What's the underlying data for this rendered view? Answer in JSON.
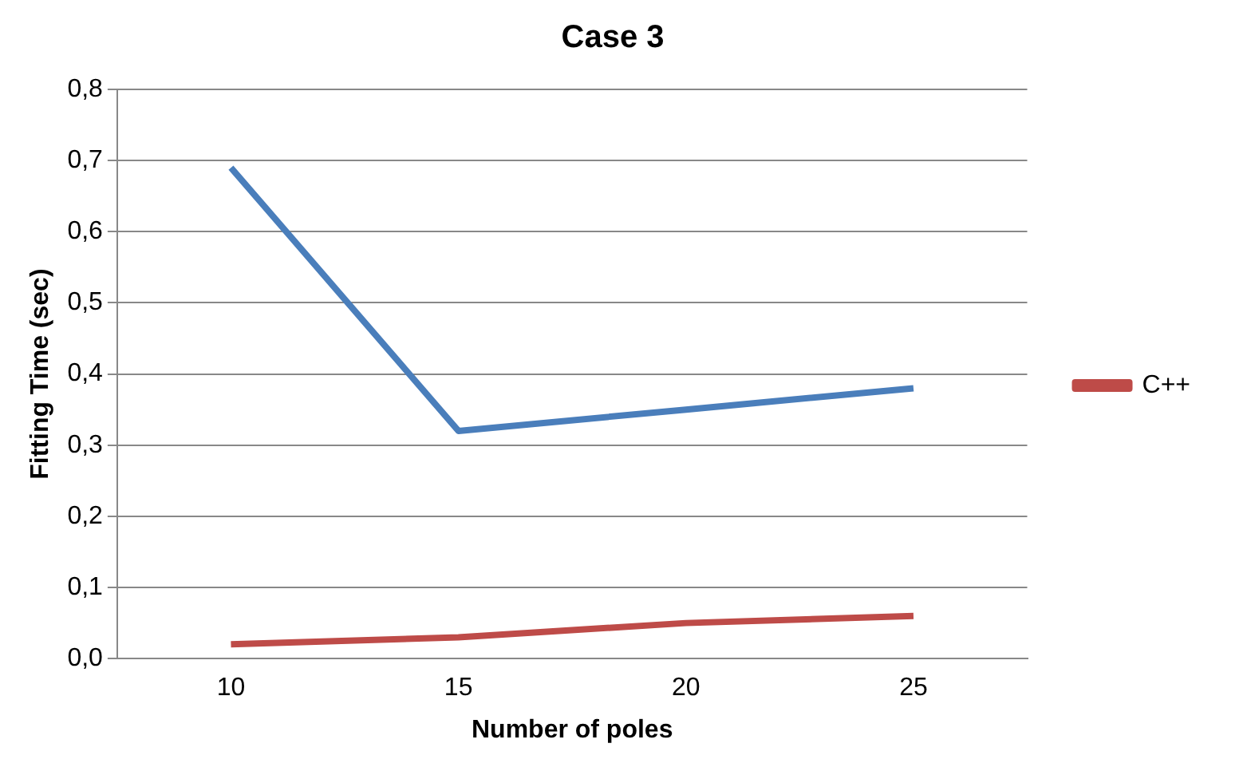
{
  "chart_data": {
    "type": "line",
    "title": "Case 3",
    "xlabel": "Number of poles",
    "ylabel": "Fitting Time (sec)",
    "categories": [
      "10",
      "15",
      "20",
      "25"
    ],
    "series": [
      {
        "color": "#4a7ebb",
        "values": [
          0.69,
          0.32,
          0.35,
          0.38
        ]
      },
      {
        "name": "C++",
        "color": "#be4b48",
        "values": [
          0.02,
          0.03,
          0.05,
          0.06
        ]
      }
    ],
    "ylim": [
      0,
      0.8
    ],
    "yticks": [
      {
        "value": 0,
        "label": "0,0"
      },
      {
        "value": 0.1,
        "label": "0,1"
      },
      {
        "value": 0.2,
        "label": "0,2"
      },
      {
        "value": 0.3,
        "label": "0,3"
      },
      {
        "value": 0.4,
        "label": "0,4"
      },
      {
        "value": 0.5,
        "label": "0,5"
      },
      {
        "value": 0.6,
        "label": "0,6"
      },
      {
        "value": 0.7,
        "label": "0,7"
      },
      {
        "value": 0.8,
        "label": "0,8"
      }
    ],
    "grid": "y",
    "legend": "right",
    "marker": "none",
    "line_style": "solid"
  }
}
